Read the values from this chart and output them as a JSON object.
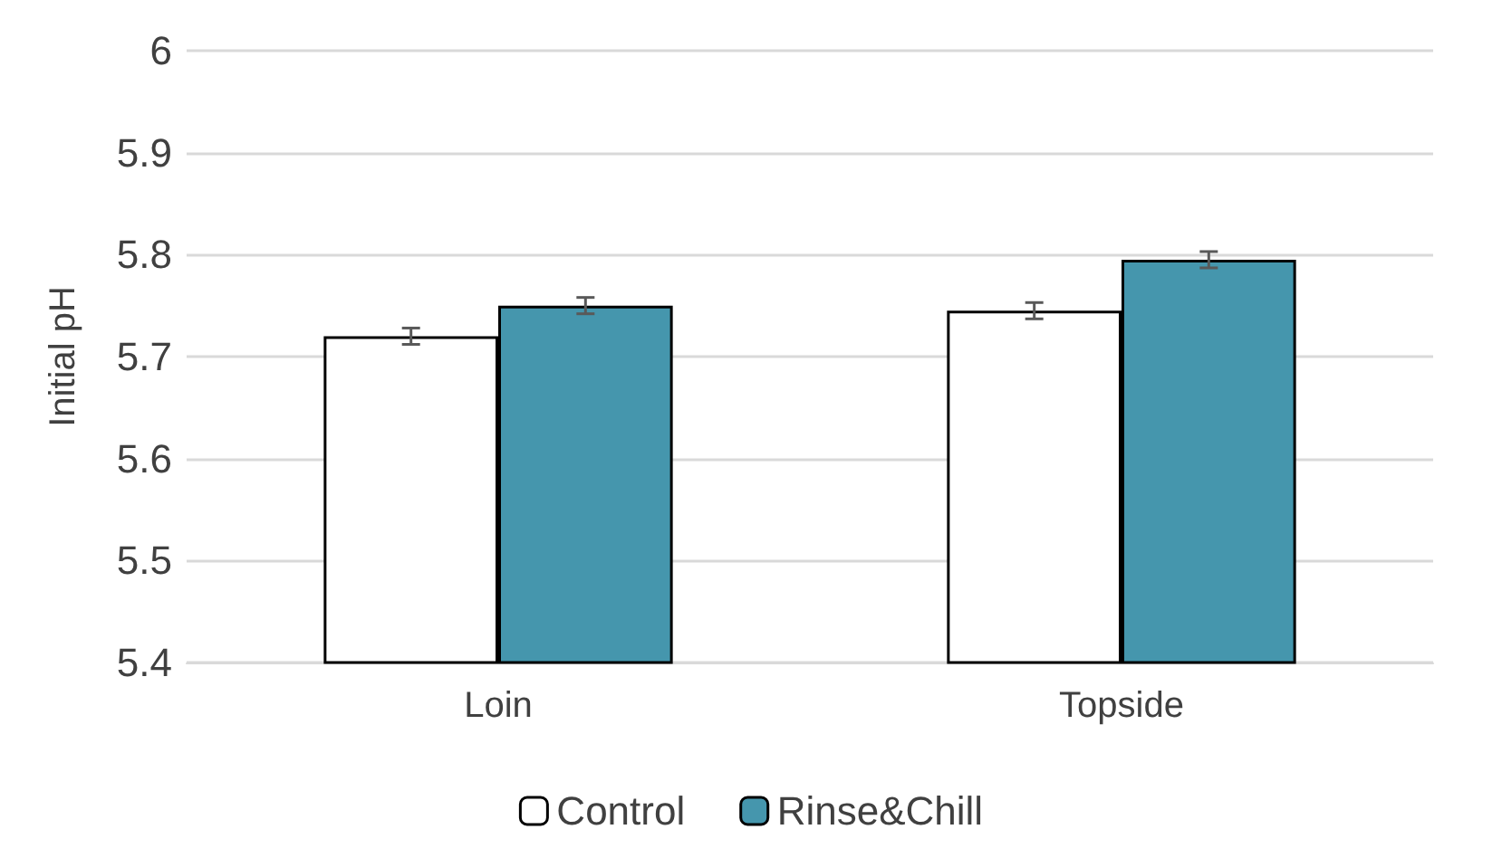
{
  "chart_data": {
    "type": "bar",
    "ylabel": "Initial pH",
    "categories": [
      "Loin",
      "Topside"
    ],
    "series": [
      {
        "name": "Control",
        "color": "#ffffff",
        "values": [
          5.72,
          5.745
        ],
        "errors": [
          0.008,
          0.008
        ]
      },
      {
        "name": "Rinse&Chill",
        "color": "#4596ad",
        "values": [
          5.75,
          5.795
        ],
        "errors": [
          0.008,
          0.008
        ]
      }
    ],
    "ylim": [
      5.4,
      6
    ],
    "yticks": [
      5.4,
      5.5,
      5.6,
      5.7,
      5.8,
      5.9,
      6
    ],
    "grid": "y",
    "legend": "bottom"
  }
}
